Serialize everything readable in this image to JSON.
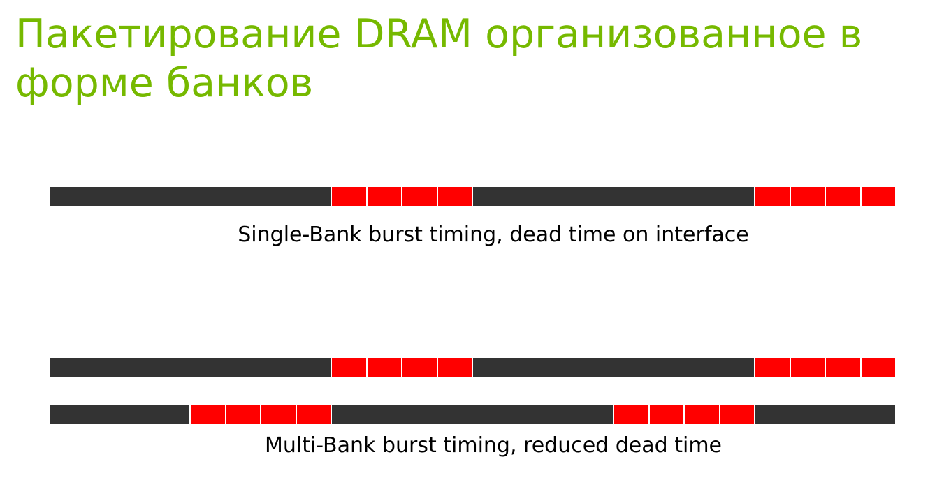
{
  "title": "Пакетирование DRAM организованное в форме банков",
  "colors": {
    "title": "#76b900",
    "idle": "#333333",
    "burst": "#ff0000"
  },
  "diagrams": [
    {
      "caption": "Single-Bank burst timing, dead time on interface",
      "timelines": [
        {
          "segments": [
            {
              "kind": "idle",
              "units": 8
            },
            {
              "kind": "burst",
              "units": 1
            },
            {
              "kind": "burst",
              "units": 1
            },
            {
              "kind": "burst",
              "units": 1
            },
            {
              "kind": "burst",
              "units": 1
            },
            {
              "kind": "idle",
              "units": 8
            },
            {
              "kind": "burst",
              "units": 1
            },
            {
              "kind": "burst",
              "units": 1
            },
            {
              "kind": "burst",
              "units": 1
            },
            {
              "kind": "burst",
              "units": 1
            }
          ]
        }
      ]
    },
    {
      "caption": "Multi-Bank burst timing, reduced dead time",
      "timelines": [
        {
          "segments": [
            {
              "kind": "idle",
              "units": 8
            },
            {
              "kind": "burst",
              "units": 1
            },
            {
              "kind": "burst",
              "units": 1
            },
            {
              "kind": "burst",
              "units": 1
            },
            {
              "kind": "burst",
              "units": 1
            },
            {
              "kind": "idle",
              "units": 8
            },
            {
              "kind": "burst",
              "units": 1
            },
            {
              "kind": "burst",
              "units": 1
            },
            {
              "kind": "burst",
              "units": 1
            },
            {
              "kind": "burst",
              "units": 1
            }
          ]
        },
        {
          "segments": [
            {
              "kind": "idle",
              "units": 4
            },
            {
              "kind": "burst",
              "units": 1
            },
            {
              "kind": "burst",
              "units": 1
            },
            {
              "kind": "burst",
              "units": 1
            },
            {
              "kind": "burst",
              "units": 1
            },
            {
              "kind": "idle",
              "units": 8
            },
            {
              "kind": "burst",
              "units": 1
            },
            {
              "kind": "burst",
              "units": 1
            },
            {
              "kind": "burst",
              "units": 1
            },
            {
              "kind": "burst",
              "units": 1
            },
            {
              "kind": "idle",
              "units": 4
            }
          ]
        }
      ]
    }
  ]
}
